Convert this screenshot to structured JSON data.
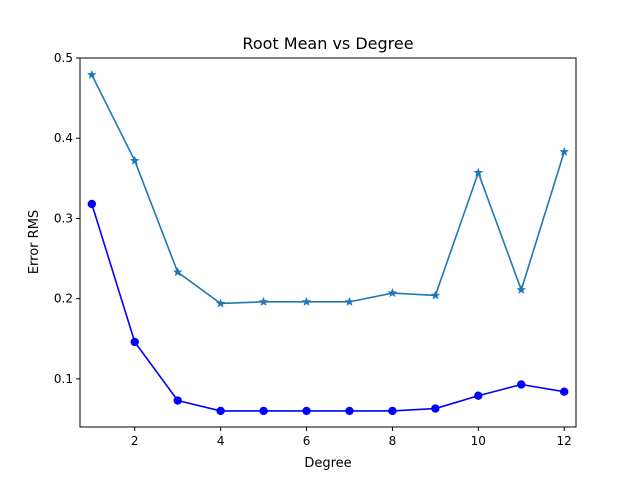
{
  "chart_data": {
    "type": "line",
    "title": "Root Mean vs  Degree",
    "xlabel": "Degree",
    "ylabel": "Error RMS",
    "xlim": [
      0.725,
      12.275
    ],
    "ylim": [
      0.04,
      0.5
    ],
    "xticks": [
      2,
      4,
      6,
      8,
      10,
      12
    ],
    "yticks": [
      0.1,
      0.2,
      0.3,
      0.4,
      0.5
    ],
    "ytick_labels": [
      "0.1",
      "0.2",
      "0.3",
      "0.4",
      "0.5"
    ],
    "grid": false,
    "x": [
      1,
      2,
      3,
      4,
      5,
      6,
      7,
      8,
      9,
      10,
      11,
      12
    ],
    "series": [
      {
        "values": [
          0.479,
          0.372,
          0.233,
          0.194,
          0.196,
          0.196,
          0.196,
          0.207,
          0.204,
          0.357,
          0.211,
          0.383
        ],
        "color": "#1f77b4",
        "marker": "star"
      },
      {
        "values": [
          0.318,
          0.146,
          0.073,
          0.06,
          0.06,
          0.06,
          0.06,
          0.06,
          0.063,
          0.079,
          0.093,
          0.084
        ],
        "color": "#0000ff",
        "marker": "circle"
      }
    ]
  }
}
